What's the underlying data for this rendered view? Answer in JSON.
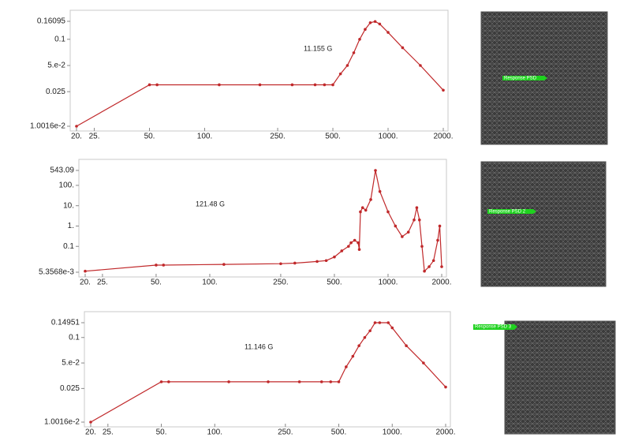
{
  "chart_data": [
    {
      "type": "line",
      "annotation": "11.155 G",
      "log_x": true,
      "log_y": true,
      "color": "#c0282a",
      "x": [
        20,
        50,
        55,
        120,
        200,
        300,
        400,
        450,
        500,
        550,
        600,
        650,
        700,
        750,
        800,
        850,
        900,
        1000,
        1200,
        1500,
        2000
      ],
      "values": [
        0.010016,
        0.03,
        0.03,
        0.03,
        0.03,
        0.03,
        0.03,
        0.03,
        0.03,
        0.04,
        0.05,
        0.07,
        0.1,
        0.13,
        0.155,
        0.16,
        0.15,
        0.12,
        0.08,
        0.05,
        0.026
      ],
      "xlim": [
        20,
        2000
      ],
      "ylim": [
        0.010016,
        0.16095
      ],
      "xticks": [
        {
          "value": 20,
          "label": "20."
        },
        {
          "value": 25,
          "label": "25."
        },
        {
          "value": 50,
          "label": "50."
        },
        {
          "value": 100,
          "label": "100."
        },
        {
          "value": 250,
          "label": "250."
        },
        {
          "value": 500,
          "label": "500."
        },
        {
          "value": 1000,
          "label": "1000."
        },
        {
          "value": 2000,
          "label": "2000."
        }
      ],
      "yticks": [
        {
          "value": 0.010016,
          "label": "1.0016e-2"
        },
        0.025,
        {
          "value": 0.05,
          "label": "5.e-2"
        },
        0.1,
        0.16095
      ]
    },
    {
      "type": "line",
      "annotation": "121.48 G",
      "log_x": true,
      "log_y": true,
      "color": "#c0282a",
      "x": [
        20,
        50,
        55,
        120,
        250,
        300,
        400,
        450,
        500,
        550,
        600,
        620,
        650,
        680,
        690,
        700,
        720,
        750,
        800,
        850,
        900,
        1000,
        1100,
        1200,
        1300,
        1400,
        1450,
        1500,
        1550,
        1600,
        1700,
        1800,
        1900,
        1950,
        2000
      ],
      "values": [
        0.006,
        0.012,
        0.012,
        0.013,
        0.014,
        0.015,
        0.018,
        0.02,
        0.03,
        0.06,
        0.1,
        0.15,
        0.2,
        0.15,
        0.07,
        5,
        8,
        6,
        20,
        543.09,
        50,
        5,
        1,
        0.3,
        0.5,
        2,
        8,
        2,
        0.1,
        0.006,
        0.01,
        0.02,
        0.2,
        1,
        0.01
      ],
      "xlim": [
        20,
        2000
      ],
      "ylim": [
        0.0053568,
        543.09
      ],
      "xticks": [
        {
          "value": 20,
          "label": "20."
        },
        {
          "value": 25,
          "label": "25."
        },
        {
          "value": 50,
          "label": "50."
        },
        {
          "value": 100,
          "label": "100."
        },
        {
          "value": 250,
          "label": "250."
        },
        {
          "value": 500,
          "label": "500."
        },
        {
          "value": 1000,
          "label": "1000."
        },
        {
          "value": 2000,
          "label": "2000."
        }
      ],
      "yticks": [
        {
          "value": 0.0053568,
          "label": "5.3568e-3"
        },
        0.1,
        {
          "value": 1,
          "label": "1."
        },
        {
          "value": 10,
          "label": "10."
        },
        {
          "value": 100,
          "label": "100."
        },
        543.09
      ]
    },
    {
      "type": "line",
      "annotation": "11.146 G",
      "log_x": true,
      "log_y": true,
      "color": "#c0282a",
      "x": [
        20,
        50,
        55,
        120,
        200,
        300,
        400,
        450,
        500,
        550,
        600,
        650,
        700,
        750,
        800,
        850,
        950,
        1000,
        1200,
        1500,
        2000
      ],
      "values": [
        0.010016,
        0.03,
        0.03,
        0.03,
        0.03,
        0.03,
        0.03,
        0.03,
        0.03,
        0.045,
        0.06,
        0.08,
        0.1,
        0.12,
        0.14951,
        0.14951,
        0.14951,
        0.13,
        0.08,
        0.05,
        0.026
      ],
      "xlim": [
        20,
        2000
      ],
      "ylim": [
        0.010016,
        0.14951
      ],
      "xticks": [
        {
          "value": 20,
          "label": "20."
        },
        {
          "value": 25,
          "label": "25."
        },
        {
          "value": 50,
          "label": "50."
        },
        {
          "value": 100,
          "label": "100."
        },
        {
          "value": 250,
          "label": "250."
        },
        {
          "value": 500,
          "label": "500."
        },
        {
          "value": 1000,
          "label": "1000."
        },
        {
          "value": 2000,
          "label": "2000."
        }
      ],
      "yticks": [
        {
          "value": 0.010016,
          "label": "1.0016e-2"
        },
        0.025,
        {
          "value": 0.05,
          "label": "5.e-2"
        },
        0.1,
        0.14951
      ]
    }
  ],
  "panels": [
    {
      "label": "Response PSD"
    },
    {
      "label": "Response PSD 2"
    },
    {
      "label": "Response PSD 3"
    }
  ]
}
